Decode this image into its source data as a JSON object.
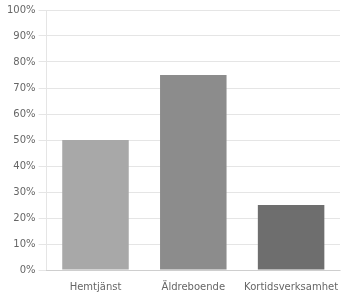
{
  "chart_data": {
    "type": "bar",
    "categories": [
      "Hemtjänst",
      "Äldreboende",
      "Kortidsverksamhet"
    ],
    "values": [
      0.5,
      0.75,
      0.25
    ],
    "colors": [
      "#a8a8a8",
      "#8c8c8c",
      "#6e6e6e"
    ],
    "ylim": [
      0,
      1.0
    ],
    "yticks": [
      {
        "value": 0.0,
        "label": "0%"
      },
      {
        "value": 0.1,
        "label": "10%"
      },
      {
        "value": 0.2,
        "label": "20%"
      },
      {
        "value": 0.3,
        "label": "30%"
      },
      {
        "value": 0.4,
        "label": "40%"
      },
      {
        "value": 0.5,
        "label": "50%"
      },
      {
        "value": 0.6,
        "label": "60%"
      },
      {
        "value": 0.7,
        "label": "70%"
      },
      {
        "value": 0.8,
        "label": "80%"
      },
      {
        "value": 0.9,
        "label": "90%"
      },
      {
        "value": 1.0,
        "label": "100%"
      }
    ],
    "grid": true
  }
}
